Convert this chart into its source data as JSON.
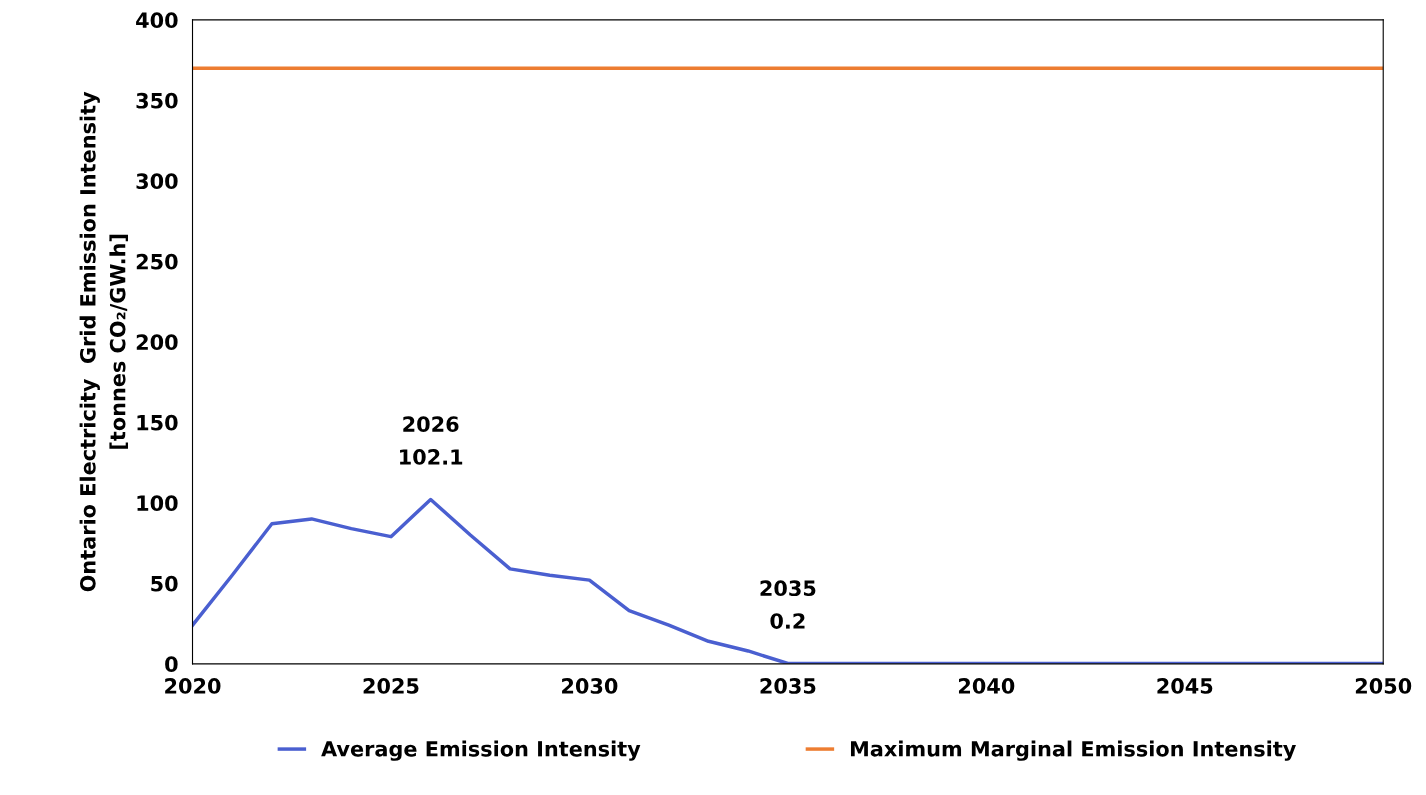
{
  "chart_data": {
    "type": "line",
    "ylabel": "Ontario Electricity  Grid Emission Intensity\n[tonnes CO₂/GW.h]",
    "x": [
      2020,
      2021,
      2022,
      2023,
      2024,
      2025,
      2026,
      2027,
      2028,
      2029,
      2030,
      2031,
      2032,
      2033,
      2034,
      2035,
      2036,
      2038,
      2040,
      2045,
      2050
    ],
    "series": [
      {
        "name": "Average Emission Intensity",
        "color": "#4a5fd0",
        "values": [
          24,
          55,
          87,
          90,
          84,
          79,
          102.1,
          80,
          59,
          55,
          52,
          33,
          24,
          14,
          8,
          0.2,
          0.2,
          0.2,
          0.2,
          0.2,
          0.2
        ]
      },
      {
        "name": "Maximum Marginal Emission Intensity",
        "color": "#ed7d31",
        "x": [
          2020,
          2050
        ],
        "values": [
          370,
          370
        ]
      }
    ],
    "xlim": [
      2020,
      2050
    ],
    "xticks": [
      2020,
      2025,
      2030,
      2035,
      2040,
      2045,
      2050
    ],
    "ylim": [
      0,
      400
    ],
    "yticks": [
      0,
      50,
      100,
      150,
      200,
      250,
      300,
      350,
      400
    ],
    "annotations": [
      {
        "text": "2026\n102.1",
        "x": 2026,
        "y": 102.1
      },
      {
        "text": "2035\n0.2",
        "x": 2035,
        "y": 0.2
      }
    ],
    "legend": "bottom",
    "grid": false,
    "marker": "none",
    "line_style": "solid"
  }
}
